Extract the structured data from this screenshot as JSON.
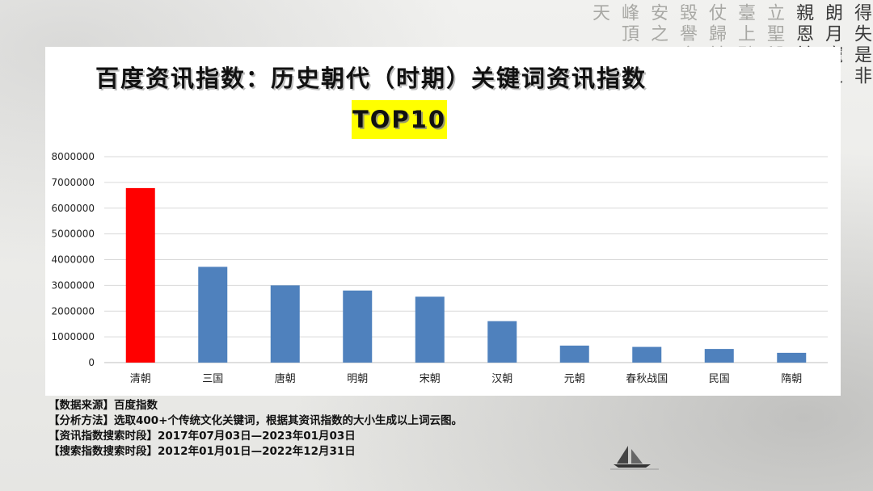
{
  "background": {
    "calligraphy_columns": [
      "得失是非",
      "朗月寵之",
      "親恩於己",
      "立聖毀譽",
      "臺上聽之",
      "仗歸於人",
      "毀譽之",
      "安之",
      "峰頂",
      "天"
    ]
  },
  "chart_data": {
    "type": "bar",
    "title": "百度资讯指数：历史朝代（时期）关键词资讯指数",
    "subtitle": "TOP10",
    "categories": [
      "清朝",
      "三国",
      "唐朝",
      "明朝",
      "宋朝",
      "汉朝",
      "元朝",
      "春秋战国",
      "民国",
      "隋朝"
    ],
    "values": [
      6780000,
      3720000,
      3000000,
      2800000,
      2560000,
      1610000,
      660000,
      610000,
      530000,
      380000
    ],
    "yticks": [
      "0",
      "1000000",
      "2000000",
      "3000000",
      "4000000",
      "5000000",
      "6000000",
      "7000000",
      "8000000"
    ],
    "ylim": [
      0,
      8000000
    ],
    "xlabel": "",
    "ylabel": "",
    "grid": true,
    "legend": "none",
    "colors": {
      "highlight": "#ff0000",
      "bar": "#4f81bd",
      "grid": "#d9d9d9",
      "axis": "#bfbfbf"
    },
    "highlight_index": 0
  },
  "notes": [
    "【数据来源】百度指数",
    "【分析方法】选取400+个传统文化关键词，根据其资讯指数的大小生成以上词云图。",
    "【资讯指数搜索时段】2017年07月03日—2023年01月03日",
    "【搜索指数搜索时段】2012年01月01日—2022年12月31日"
  ]
}
